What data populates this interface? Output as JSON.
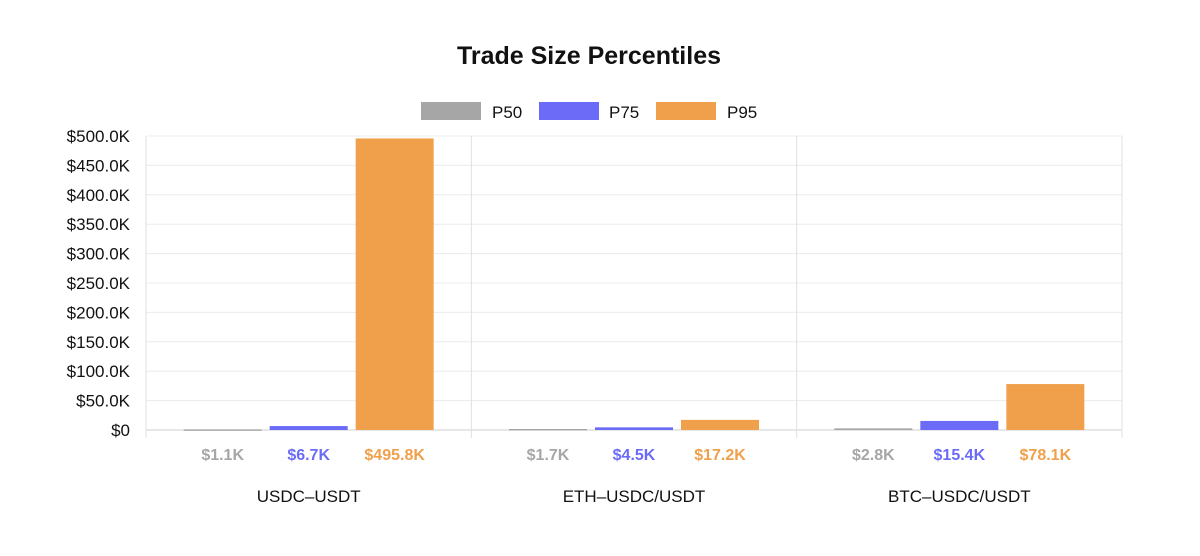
{
  "chart_data": {
    "type": "bar",
    "title": "Trade Size Percentiles",
    "categories": [
      "USDC–USDT",
      "ETH–USDC/USDT",
      "BTC–USDC/USDT"
    ],
    "series": [
      {
        "name": "P50",
        "color": "#a6a6a6",
        "values": [
          1100,
          1700,
          2800
        ],
        "labels": [
          "$1.1K",
          "$1.7K",
          "$2.8K"
        ]
      },
      {
        "name": "P75",
        "color": "#6b6bf7",
        "values": [
          6700,
          4500,
          15400
        ],
        "labels": [
          "$6.7K",
          "$4.5K",
          "$15.4K"
        ]
      },
      {
        "name": "P95",
        "color": "#f0a04b",
        "values": [
          495800,
          17200,
          78100
        ],
        "labels": [
          "$495.8K",
          "$17.2K",
          "$78.1K"
        ]
      }
    ],
    "ylim": [
      0,
      500000
    ],
    "yticks": [
      {
        "value": 0,
        "label": "$0"
      },
      {
        "value": 50000,
        "label": "$50.0K"
      },
      {
        "value": 100000,
        "label": "$100.0K"
      },
      {
        "value": 150000,
        "label": "$150.0K"
      },
      {
        "value": 200000,
        "label": "$200.0K"
      },
      {
        "value": 250000,
        "label": "$250.0K"
      },
      {
        "value": 300000,
        "label": "$300.0K"
      },
      {
        "value": 350000,
        "label": "$350.0K"
      },
      {
        "value": 400000,
        "label": "$400.0K"
      },
      {
        "value": 450000,
        "label": "$450.0K"
      },
      {
        "value": 500000,
        "label": "$500.0K"
      }
    ],
    "grid": true,
    "legend_position": "top-center"
  }
}
